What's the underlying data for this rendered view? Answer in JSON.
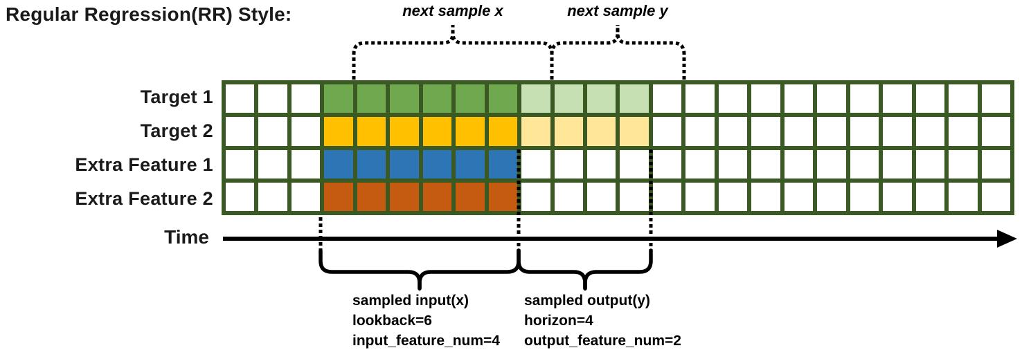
{
  "title": "Regular Regression(RR) Style:",
  "top_annotations": {
    "next_sample_x": "next sample x",
    "next_sample_y": "next sample y"
  },
  "time_axis": {
    "label": "Time"
  },
  "grid": {
    "columns": 24,
    "blank_before": 3,
    "lookback": 6,
    "horizon": 4,
    "rows": [
      {
        "label": "Target 1",
        "input_color": "#6FA84F",
        "output_color": "#C6E0B4"
      },
      {
        "label": "Target 2",
        "input_color": "#FFC000",
        "output_color": "#FFE699"
      },
      {
        "label": "Extra Feature 1",
        "input_color": "#2E75B6",
        "output_color": null
      },
      {
        "label": "Extra Feature 2",
        "input_color": "#C55A11",
        "output_color": null
      }
    ]
  },
  "colors": {
    "grid_border": "#3B5A23",
    "blank_cell": "#FFFFFF",
    "line": "#000000"
  },
  "bottom_annotations": {
    "input_note": [
      "sampled input(x)",
      "lookback=6",
      "input_feature_num=4"
    ],
    "output_note": [
      "sampled output(y)",
      "horizon=4",
      "output_feature_num=2"
    ]
  }
}
